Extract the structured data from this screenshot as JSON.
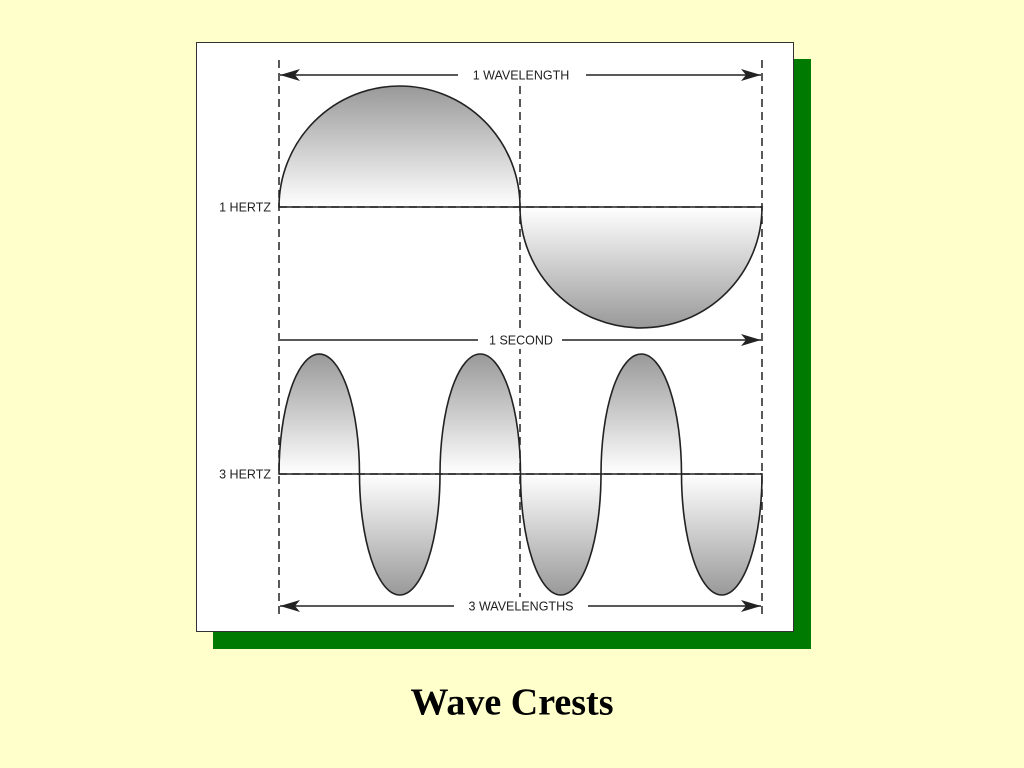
{
  "title": "Wave Crests",
  "labels": {
    "top_arrow": "1 WAVELENGTH",
    "top_wave": "1 HERTZ",
    "middle_arrow": "1 SECOND",
    "bottom_wave": "3 HERTZ",
    "bottom_arrow": "3 WAVELENGTHS"
  }
}
